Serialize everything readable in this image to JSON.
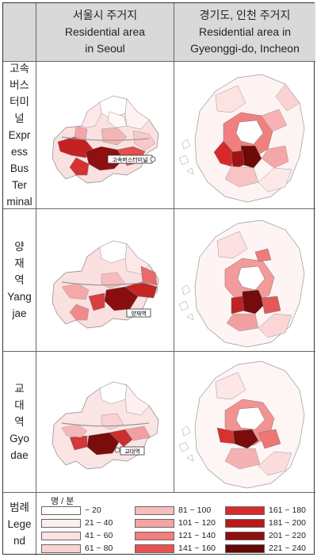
{
  "headers": {
    "col1": {
      "ko": "서울시 주거지",
      "en1": "Residential area",
      "en2": "in Seoul"
    },
    "col2": {
      "ko": "경기도, 인천 주거지",
      "en1": "Residential area in",
      "en2": "Gyeonggi-do, Incheon"
    }
  },
  "rows": [
    {
      "label_lines": [
        "고속",
        "버스",
        "터미",
        "널",
        "Expr",
        "ess",
        "Bus",
        "Ter",
        "minal"
      ],
      "marker": "고속버스터미널"
    },
    {
      "label_lines": [
        "양",
        "재",
        "역",
        "Yang",
        "jae"
      ],
      "marker": "양재역"
    },
    {
      "label_lines": [
        "교",
        "대",
        "역",
        "Gyo",
        "dae"
      ],
      "marker": "교대역"
    }
  ],
  "legend": {
    "label_lines": [
      "범례",
      "Lege",
      "nd"
    ],
    "unit": "명 / 분",
    "items": [
      {
        "range": "~ 20",
        "color": "#ffffff"
      },
      {
        "range": "21 ~ 40",
        "color": "#fff0f0"
      },
      {
        "range": "41 ~ 60",
        "color": "#fde3e3"
      },
      {
        "range": "61 ~ 80",
        "color": "#fbd2d2"
      },
      {
        "range": "81 ~ 100",
        "color": "#f9bcbc"
      },
      {
        "range": "101 ~ 120",
        "color": "#f5a3a3"
      },
      {
        "range": "121 ~ 140",
        "color": "#f07e7e"
      },
      {
        "range": "141 ~ 160",
        "color": "#ea5151"
      },
      {
        "range": "161 ~ 180",
        "color": "#d92b2b"
      },
      {
        "range": "181 ~ 200",
        "color": "#b81a1a"
      },
      {
        "range": "201 ~ 220",
        "color": "#8f0f0f"
      },
      {
        "range": "221 ~ 240",
        "color": "#650808"
      }
    ]
  }
}
